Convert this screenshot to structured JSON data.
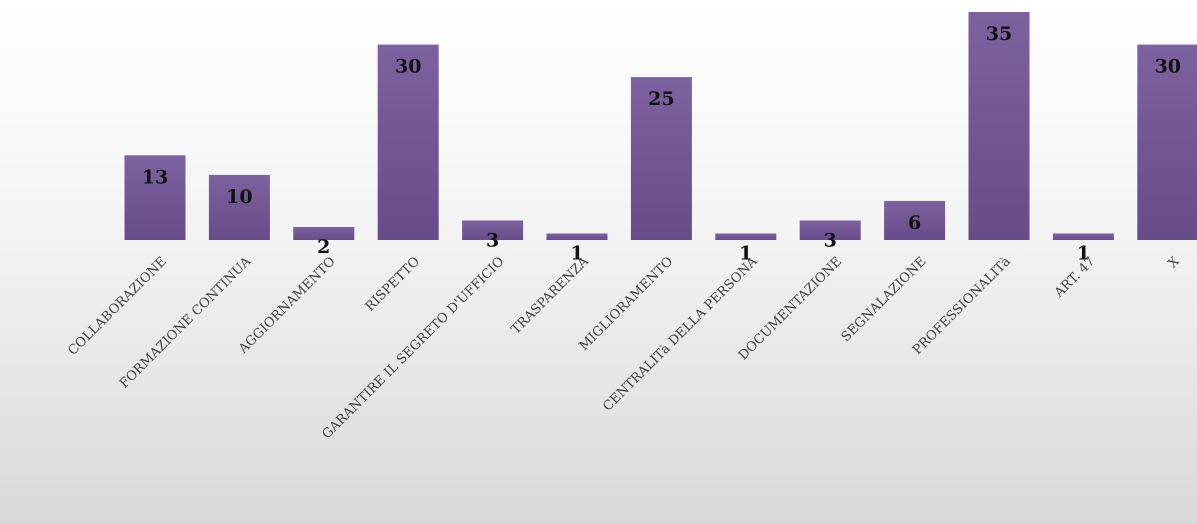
{
  "chart_data": {
    "type": "bar",
    "categories": [
      "COLLABORAZIONE",
      "FORMAZIONE CONTINUA",
      "AGGIORNAMENTO",
      "RISPETTO",
      "GARANTIRE IL SEGRETO D'UFFICIO",
      "TRASPARENZA",
      "MIGLIORAMENTO",
      "CENTRALITà DELLA PERSONA",
      "DOCUMENTAZIONE",
      "SEGNALAZIONE",
      "PROFESSIONALITà",
      "ART. 47",
      "X"
    ],
    "values": [
      13,
      10,
      2,
      30,
      3,
      1,
      25,
      1,
      3,
      6,
      35,
      1,
      30
    ],
    "title": "",
    "xlabel": "",
    "ylabel": "",
    "ylim": [
      0,
      35
    ],
    "grid": false,
    "legend": "none",
    "bar_color": "#7a5c9c",
    "bar_color_dark": "#6a4b8c"
  }
}
